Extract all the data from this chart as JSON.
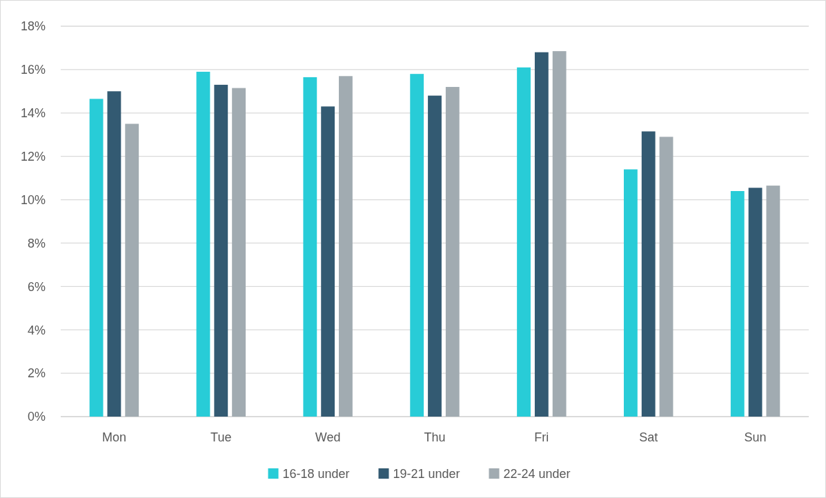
{
  "chart_data": {
    "type": "bar",
    "categories": [
      "Mon",
      "Tue",
      "Wed",
      "Thu",
      "Fri",
      "Sat",
      "Sun"
    ],
    "series": [
      {
        "name": "16-18 under",
        "color": "#28ccd7",
        "values": [
          14.65,
          15.9,
          15.65,
          15.8,
          16.1,
          11.4,
          10.4
        ]
      },
      {
        "name": "19-21 under",
        "color": "#335a72",
        "values": [
          15.0,
          15.3,
          14.3,
          14.8,
          16.8,
          13.15,
          10.55
        ]
      },
      {
        "name": "22-24 under",
        "color": "#a1abb1",
        "values": [
          13.5,
          15.15,
          15.7,
          15.2,
          16.85,
          12.9,
          10.65
        ]
      }
    ],
    "ylim": [
      0,
      18
    ],
    "yticks": [
      {
        "value": 0,
        "label": "0%"
      },
      {
        "value": 2,
        "label": "2%"
      },
      {
        "value": 4,
        "label": "4%"
      },
      {
        "value": 6,
        "label": "6%"
      },
      {
        "value": 8,
        "label": "8%"
      },
      {
        "value": 10,
        "label": "10%"
      },
      {
        "value": 12,
        "label": "12%"
      },
      {
        "value": 14,
        "label": "14%"
      },
      {
        "value": 16,
        "label": "16%"
      },
      {
        "value": 18,
        "label": "18%"
      }
    ],
    "grid": "y",
    "legend": "bottom"
  }
}
